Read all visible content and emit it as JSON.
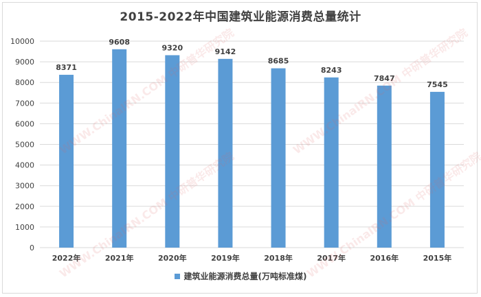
{
  "chart_data": {
    "type": "bar",
    "title": "2015-2022年中国建筑业能源消费总量统计",
    "categories": [
      "2022年",
      "2021年",
      "2020年",
      "2019年",
      "2018年",
      "2017年",
      "2016年",
      "2015年"
    ],
    "series": [
      {
        "name": "建筑业能源消费总量(万吨标准煤)",
        "values": [
          8371,
          9608,
          9320,
          9142,
          8685,
          8243,
          7847,
          7545
        ]
      }
    ],
    "ylim": [
      0,
      10000
    ],
    "yticks": [
      0,
      1000,
      2000,
      3000,
      4000,
      5000,
      6000,
      7000,
      8000,
      9000,
      10000
    ],
    "grid": true,
    "legend_position": "bottom",
    "colors": {
      "bar": "#5b9bd5",
      "grid": "#d9d9d9",
      "text": "#404040"
    }
  },
  "watermark": {
    "text": "WWW.ChinaIRN.COM 中研普华研究院"
  }
}
